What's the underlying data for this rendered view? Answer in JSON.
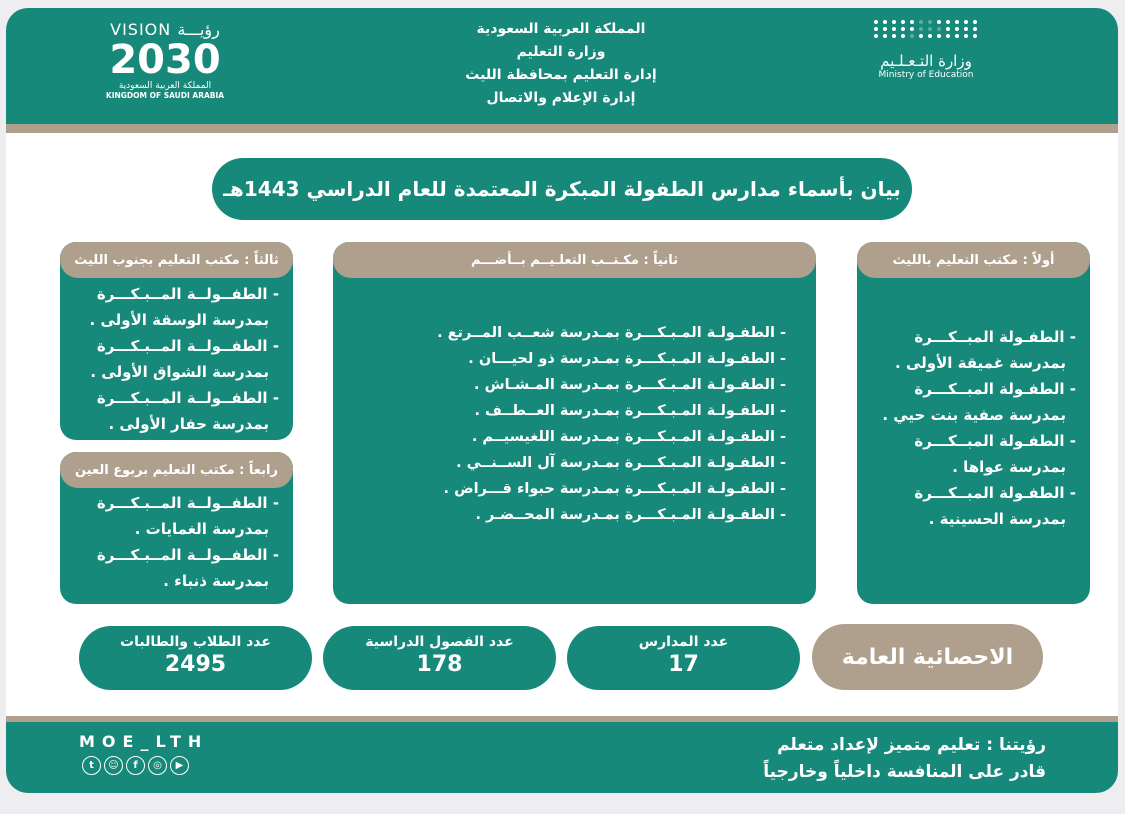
{
  "colors": {
    "primary": "#17897a",
    "accent": "#afa08e",
    "background": "#ffffff"
  },
  "header": {
    "lines": [
      "المملكة العربية السعودية",
      "وزارة التعليم",
      "إدارة التعليم بمحافظة الليث",
      "إدارة الإعلام والاتصال"
    ],
    "vision_logo": {
      "top": "VISION رؤيـــة",
      "number": "2030",
      "arabic": "المملكة العربية السعودية",
      "english": "KINGDOM OF SAUDI ARABIA"
    },
    "moe_logo": {
      "arabic": "وزارة التـعـلـيم",
      "english": "Ministry of Education"
    }
  },
  "title": "بيان بأسماء مدارس الطفولة المبكرة المعتمدة للعام الدراسي 1443هـ",
  "offices": {
    "first": {
      "heading": "أولاً : مكتب التعليم بالليث",
      "items": [
        {
          "l1": "- الطفـولة المبــكـــرة",
          "l2": "بمدرسة غميقة الأولى ."
        },
        {
          "l1": "- الطفـولة المبــكـــرة",
          "l2": "بمدرسة صفية بنت حيي ."
        },
        {
          "l1": "- الطفـولة المبــكـــرة",
          "l2": "بمدرسة عواها ."
        },
        {
          "l1": "- الطفـولة المبــكـــرة",
          "l2": "بمدرسة الحسينية ."
        }
      ]
    },
    "second": {
      "heading": "ثانياً : مكـتــب التعلـيــم بــأضـــم",
      "items": [
        "- الطفـولـة المـبـكـــرة بمـدرسة شعــب المــرتع .",
        "- الطفـولـة المـبـكـــرة بمـدرسة ذو لحيـــان .",
        "- الطفـولـة المـبـكـــرة بمـدرسة المـشـاش .",
        "- الطفـولـة المـبـكـــرة بمـدرسة العــطــف .",
        "- الطفـولـة المـبـكـــرة بمـدرسة اللغيسيــم .",
        "- الطفـولـة المـبـكـــرة بمـدرسة آل الســنــي .",
        "- الطفـولـة المـبـكـــرة بمـدرسة حبواء قـــراض .",
        "- الطفـولـة المـبـكـــرة بمـدرسة المحــضـر ."
      ]
    },
    "third": {
      "heading": "ثالثاً : مكتب التعليم بجنوب الليث",
      "items": [
        {
          "l1": "- الطفــولــة المــبـكـــرة",
          "l2": "بمدرسة الوسقة الأولى ."
        },
        {
          "l1": "- الطفــولــة المــبـكـــرة",
          "l2": "بمدرسة الشواق الأولى ."
        },
        {
          "l1": "- الطفــولــة المــبـكـــرة",
          "l2": "بمدرسة حفار الأولى ."
        }
      ]
    },
    "fourth": {
      "heading": "رابعاً : مكتب التعليم بربوع العين",
      "items": [
        {
          "l1": "- الطفــولــة المــبـكـــرة",
          "l2": "بمدرسة الغمايات ."
        },
        {
          "l1": "- الطفــولــة المــبـكـــرة",
          "l2": "بمدرسة ذنباء ."
        }
      ]
    }
  },
  "stats": {
    "heading": "الاحصائية العامة",
    "schools": {
      "label": "عدد المدارس",
      "value": "17"
    },
    "classes": {
      "label": "عدد الفصول الدراسية",
      "value": "178"
    },
    "students": {
      "label": "عدد الطلاب والطالبات",
      "value": "2495"
    }
  },
  "footer": {
    "vision_lines": [
      "رؤيتنا : تعليم متميز لإعداد متعلم",
      "قادر على المنافسة داخلياً وخارجياً"
    ],
    "handle": "MOE_LTH",
    "social_icons": [
      "youtube-icon",
      "instagram-icon",
      "facebook-icon",
      "snapchat-icon",
      "twitter-icon"
    ]
  }
}
